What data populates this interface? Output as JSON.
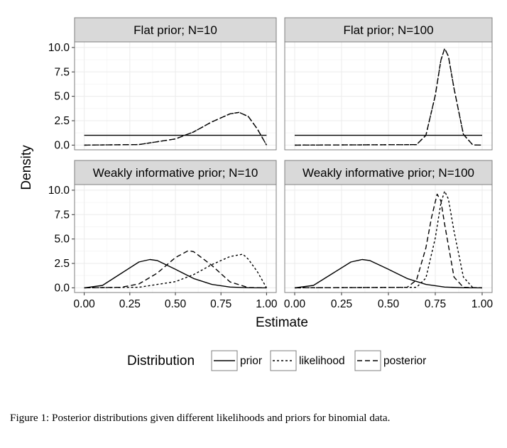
{
  "chart_data": {
    "type": "line",
    "facet_grid": {
      "rows": 2,
      "cols": 2
    },
    "xlabel": "Estimate",
    "ylabel": "Density",
    "xlim": [
      0,
      1
    ],
    "ylim": [
      0,
      10
    ],
    "x_ticks": [
      "0.00",
      "0.25",
      "0.50",
      "0.75",
      "1.00"
    ],
    "y_ticks": [
      "0.0",
      "2.5",
      "5.0",
      "7.5",
      "10.0"
    ],
    "grid": true,
    "legend": {
      "title": "Distribution",
      "position": "bottom",
      "entries": [
        {
          "label": "prior",
          "linetype": "solid"
        },
        {
          "label": "likelihood",
          "linetype": "dotted"
        },
        {
          "label": "posterior",
          "linetype": "dashed"
        }
      ]
    },
    "panels": [
      {
        "title": "Flat prior; N=10",
        "series": [
          {
            "name": "prior",
            "x": [
              0.0,
              0.25,
              0.5,
              0.75,
              1.0
            ],
            "y": [
              1.0,
              1.0,
              1.0,
              1.0,
              1.0
            ]
          },
          {
            "name": "likelihood",
            "x": [
              0.0,
              0.3,
              0.5,
              0.6,
              0.7,
              0.8,
              0.85,
              0.9,
              0.95,
              1.0
            ],
            "y": [
              0.0,
              0.06,
              0.63,
              1.35,
              2.38,
              3.21,
              3.35,
              2.93,
              1.64,
              0.0
            ]
          },
          {
            "name": "posterior",
            "x": [
              0.0,
              0.3,
              0.5,
              0.6,
              0.7,
              0.8,
              0.85,
              0.9,
              0.95,
              1.0
            ],
            "y": [
              0.0,
              0.06,
              0.63,
              1.35,
              2.38,
              3.21,
              3.35,
              2.93,
              1.64,
              0.0
            ]
          }
        ]
      },
      {
        "title": "Flat prior; N=100",
        "series": [
          {
            "name": "prior",
            "x": [
              0.0,
              0.25,
              0.5,
              0.75,
              1.0
            ],
            "y": [
              1.0,
              1.0,
              1.0,
              1.0,
              1.0
            ]
          },
          {
            "name": "likelihood",
            "x": [
              0.0,
              0.65,
              0.7,
              0.75,
              0.78,
              0.8,
              0.82,
              0.85,
              0.9,
              0.95,
              1.0
            ],
            "y": [
              0.0,
              0.05,
              1.0,
              5.1,
              8.7,
              9.9,
              9.1,
              5.8,
              1.1,
              0.02,
              0.0
            ]
          },
          {
            "name": "posterior",
            "x": [
              0.0,
              0.65,
              0.7,
              0.75,
              0.78,
              0.8,
              0.82,
              0.85,
              0.9,
              0.95,
              1.0
            ],
            "y": [
              0.0,
              0.05,
              1.0,
              5.1,
              8.7,
              9.9,
              9.1,
              5.8,
              1.1,
              0.02,
              0.0
            ]
          }
        ]
      },
      {
        "title": "Weakly informative prior; N=10",
        "series": [
          {
            "name": "prior",
            "x": [
              0.0,
              0.1,
              0.2,
              0.3,
              0.36,
              0.4,
              0.5,
              0.6,
              0.7,
              0.8,
              0.9,
              1.0
            ],
            "y": [
              0.0,
              0.25,
              1.45,
              2.65,
              2.9,
              2.8,
              1.9,
              0.95,
              0.35,
              0.08,
              0.01,
              0.0
            ]
          },
          {
            "name": "likelihood",
            "x": [
              0.0,
              0.3,
              0.5,
              0.6,
              0.7,
              0.8,
              0.87,
              0.9,
              0.95,
              1.0
            ],
            "y": [
              0.0,
              0.06,
              0.63,
              1.35,
              2.38,
              3.21,
              3.45,
              2.93,
              1.64,
              0.0
            ]
          },
          {
            "name": "posterior",
            "x": [
              0.0,
              0.2,
              0.3,
              0.4,
              0.5,
              0.57,
              0.6,
              0.7,
              0.8,
              0.9,
              1.0
            ],
            "y": [
              0.0,
              0.05,
              0.4,
              1.5,
              3.1,
              3.8,
              3.7,
              2.3,
              0.6,
              0.03,
              0.0
            ]
          }
        ]
      },
      {
        "title": "Weakly informative prior; N=100",
        "series": [
          {
            "name": "prior",
            "x": [
              0.0,
              0.1,
              0.2,
              0.3,
              0.36,
              0.4,
              0.5,
              0.6,
              0.7,
              0.8,
              0.9,
              1.0
            ],
            "y": [
              0.0,
              0.25,
              1.45,
              2.65,
              2.9,
              2.8,
              1.9,
              0.95,
              0.35,
              0.08,
              0.01,
              0.0
            ]
          },
          {
            "name": "likelihood",
            "x": [
              0.0,
              0.65,
              0.7,
              0.75,
              0.78,
              0.8,
              0.82,
              0.85,
              0.9,
              0.95,
              1.0
            ],
            "y": [
              0.0,
              0.05,
              1.0,
              5.1,
              8.7,
              9.9,
              9.1,
              5.8,
              1.1,
              0.02,
              0.0
            ]
          },
          {
            "name": "posterior",
            "x": [
              0.0,
              0.6,
              0.65,
              0.7,
              0.73,
              0.76,
              0.78,
              0.8,
              0.85,
              0.9,
              1.0
            ],
            "y": [
              0.0,
              0.05,
              0.8,
              4.1,
              7.2,
              9.6,
              8.9,
              6.5,
              1.1,
              0.05,
              0.0
            ]
          }
        ]
      }
    ]
  },
  "caption": "Figure 1: Posterior distributions given different likelihoods and priors for binomial data.",
  "colors": {
    "panel_bg": "#ffffff",
    "grid": "#ebebeb",
    "strip_bg": "#d9d9d9",
    "border": "#7f7f7f",
    "line": "#000000"
  }
}
